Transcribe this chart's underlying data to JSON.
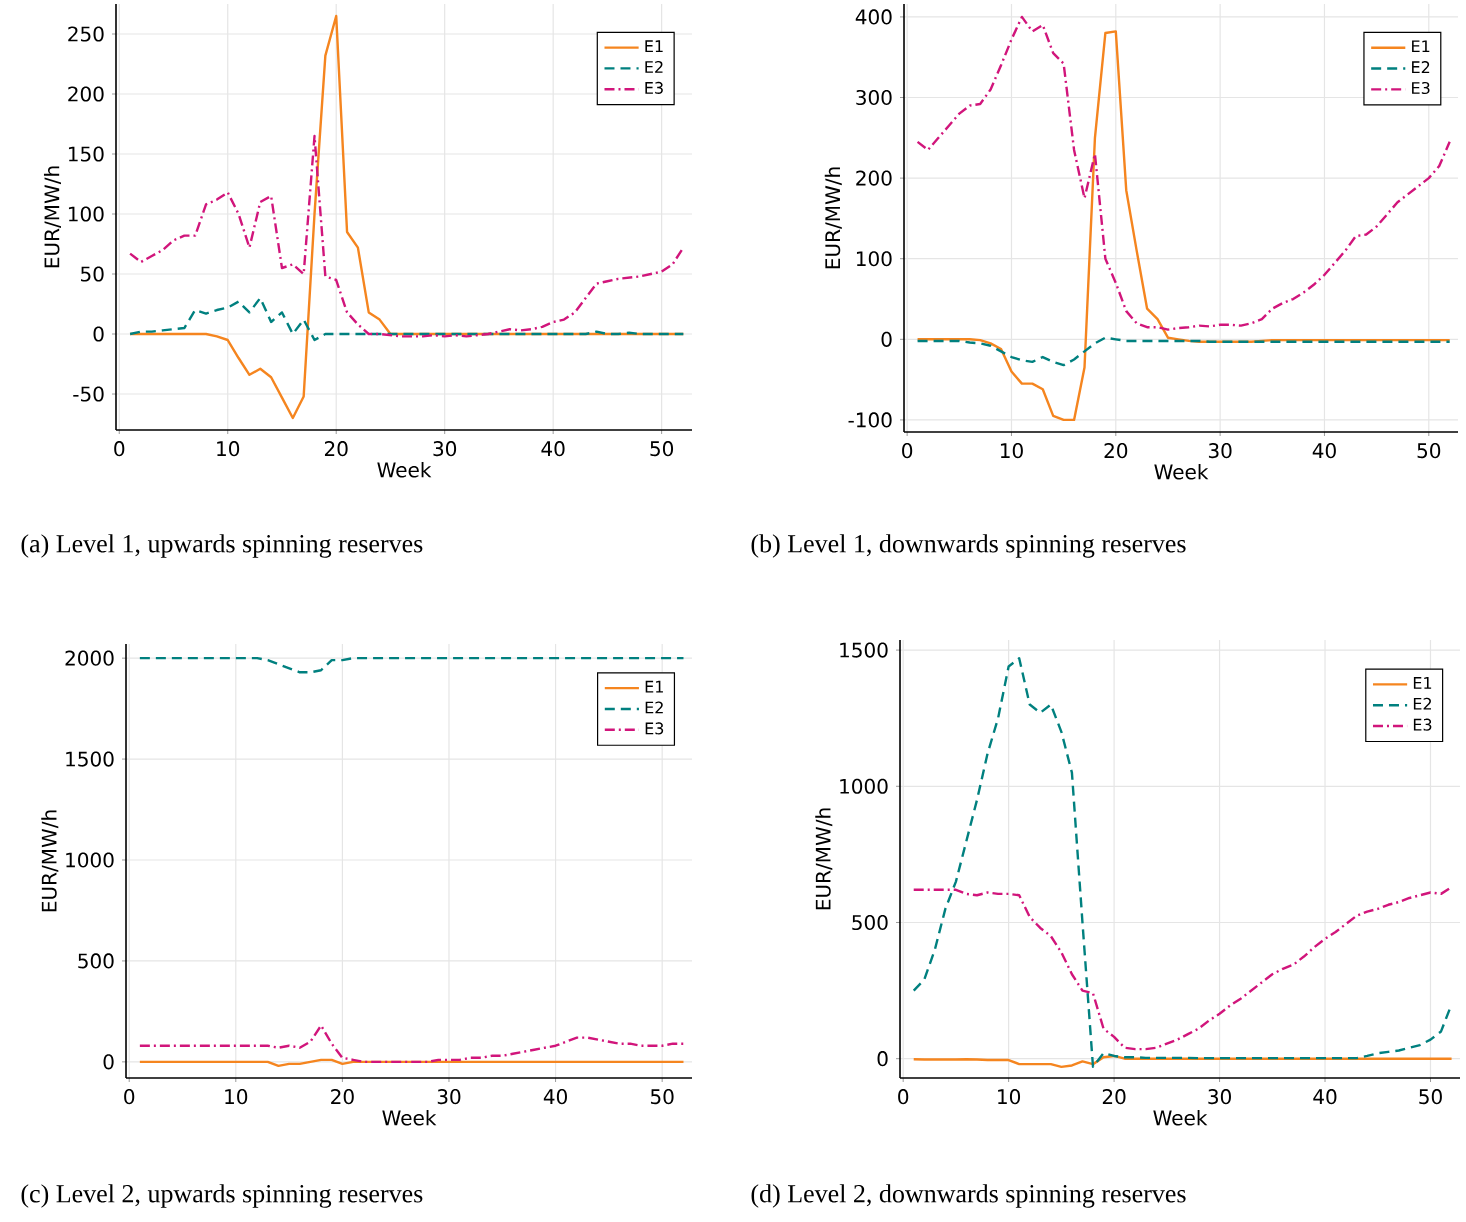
{
  "chart_data": [
    {
      "type": "line",
      "xlabel": "Week",
      "ylabel": "EUR/MW/h",
      "annotations": [
        "(a) Level 1, upwards spinning reserves"
      ],
      "grid": true,
      "legend": "top right",
      "xlim": [
        -0.3,
        52.8
      ],
      "xticks": [
        0,
        10,
        20,
        30,
        40,
        50
      ],
      "ylim": [
        -80,
        275
      ],
      "yticks": [
        -50,
        0,
        50,
        100,
        150,
        200,
        250
      ],
      "x": [
        1,
        2,
        3,
        4,
        5,
        6,
        7,
        8,
        9,
        10,
        11,
        12,
        13,
        14,
        15,
        16,
        17,
        18,
        19,
        20,
        21,
        22,
        23,
        24,
        25,
        26,
        27,
        28,
        29,
        30,
        31,
        32,
        33,
        34,
        35,
        36,
        37,
        38,
        39,
        40,
        41,
        42,
        43,
        44,
        45,
        46,
        47,
        48,
        49,
        50,
        51,
        52
      ],
      "series": [
        {
          "name": "E1",
          "color": "#f5851f",
          "line_style": "solid",
          "values": [
            0,
            0,
            0,
            0,
            0,
            0,
            0,
            0,
            -2,
            -5,
            -20,
            -34,
            -29,
            -36,
            -53,
            -70,
            -52,
            100,
            232,
            265,
            85,
            72,
            18,
            12,
            0,
            0,
            0,
            0,
            0,
            0,
            0,
            0,
            0,
            0,
            0,
            0,
            0,
            0,
            0,
            0,
            0,
            0,
            0,
            0,
            0,
            0,
            0,
            0,
            0,
            0,
            0,
            0
          ]
        },
        {
          "name": "E2",
          "color": "#00807f",
          "line_style": "dashed",
          "values": [
            0,
            2,
            2,
            3,
            4,
            5,
            20,
            17,
            20,
            22,
            27,
            18,
            30,
            10,
            18,
            0,
            12,
            -5,
            0,
            0,
            0,
            0,
            0,
            0,
            0,
            0,
            0,
            0,
            0,
            0,
            0,
            0,
            0,
            0,
            0,
            0,
            0,
            0,
            0,
            0,
            0,
            0,
            0,
            2,
            0,
            0,
            1,
            0,
            0,
            0,
            0,
            0
          ]
        },
        {
          "name": "E3",
          "color": "#d1157b",
          "line_style": "dashdot",
          "values": [
            67,
            60,
            65,
            70,
            78,
            82,
            82,
            108,
            112,
            118,
            100,
            72,
            110,
            115,
            55,
            58,
            50,
            165,
            48,
            45,
            18,
            8,
            0,
            0,
            -1,
            -2,
            -2,
            -2,
            -1,
            -2,
            -1,
            -2,
            -1,
            0,
            2,
            4,
            3,
            4,
            6,
            10,
            12,
            18,
            30,
            42,
            44,
            46,
            47,
            48,
            50,
            52,
            58,
            72
          ]
        }
      ]
    },
    {
      "type": "line",
      "xlabel": "Week",
      "ylabel": "EUR/MW/h",
      "annotations": [
        "(b) Level 1, downwards spinning reserves"
      ],
      "grid": true,
      "legend": "top right",
      "xlim": [
        -0.3,
        52.8
      ],
      "xticks": [
        0,
        10,
        20,
        30,
        40,
        50
      ],
      "ylim": [
        -115,
        416
      ],
      "yticks": [
        -100,
        0,
        100,
        200,
        300,
        400
      ],
      "x": [
        1,
        2,
        3,
        4,
        5,
        6,
        7,
        8,
        9,
        10,
        11,
        12,
        13,
        14,
        15,
        16,
        17,
        18,
        19,
        20,
        21,
        22,
        23,
        24,
        25,
        26,
        27,
        28,
        29,
        30,
        31,
        32,
        33,
        34,
        35,
        36,
        37,
        38,
        39,
        40,
        41,
        42,
        43,
        44,
        45,
        46,
        47,
        48,
        49,
        50,
        51,
        52
      ],
      "series": [
        {
          "name": "E1",
          "color": "#f5851f",
          "line_style": "solid",
          "values": [
            0,
            0,
            0,
            0,
            0,
            0,
            -1,
            -5,
            -12,
            -40,
            -55,
            -55,
            -62,
            -95,
            -100,
            -100,
            -35,
            250,
            380,
            382,
            185,
            110,
            38,
            25,
            2,
            0,
            -2,
            -3,
            -3,
            -3,
            -3,
            -3,
            -3,
            -2,
            -1,
            -1,
            -1,
            -1,
            -1,
            -1,
            -1,
            -1,
            -1,
            -1,
            -1,
            -1,
            -1,
            -1,
            -1,
            -1,
            -1,
            -1
          ]
        },
        {
          "name": "E2",
          "color": "#00807f",
          "line_style": "dashed",
          "values": [
            -2,
            -2,
            -2,
            -2,
            -2,
            -4,
            -5,
            -8,
            -15,
            -22,
            -26,
            -28,
            -22,
            -28,
            -32,
            -25,
            -15,
            -5,
            2,
            0,
            -2,
            -2,
            -2,
            -2,
            -2,
            -2,
            -2,
            -2,
            -3,
            -3,
            -3,
            -3,
            -3,
            -3,
            -3,
            -3,
            -3,
            -3,
            -3,
            -3,
            -3,
            -3,
            -3,
            -3,
            -3,
            -3,
            -3,
            -3,
            -3,
            -3,
            -3,
            -3
          ]
        },
        {
          "name": "E3",
          "color": "#d1157b",
          "line_style": "dashdot",
          "values": [
            245,
            235,
            250,
            265,
            280,
            290,
            292,
            310,
            340,
            372,
            400,
            382,
            390,
            355,
            342,
            235,
            175,
            230,
            100,
            70,
            35,
            20,
            15,
            15,
            12,
            14,
            15,
            17,
            16,
            18,
            18,
            17,
            20,
            25,
            38,
            45,
            50,
            58,
            68,
            80,
            95,
            110,
            128,
            130,
            140,
            155,
            170,
            180,
            190,
            200,
            215,
            245
          ]
        }
      ]
    },
    {
      "type": "line",
      "xlabel": "Week",
      "ylabel": "EUR/MW/h",
      "annotations": [
        "(c) Level 2, upwards spinning reserves"
      ],
      "grid": true,
      "legend": "top right",
      "xlim": [
        -0.3,
        52.8
      ],
      "xticks": [
        0,
        10,
        20,
        30,
        40,
        50
      ],
      "ylim": [
        -80,
        2070
      ],
      "yticks": [
        0,
        500,
        1000,
        1500,
        2000
      ],
      "x": [
        1,
        2,
        3,
        4,
        5,
        6,
        7,
        8,
        9,
        10,
        11,
        12,
        13,
        14,
        15,
        16,
        17,
        18,
        19,
        20,
        21,
        22,
        23,
        24,
        25,
        26,
        27,
        28,
        29,
        30,
        31,
        32,
        33,
        34,
        35,
        36,
        37,
        38,
        39,
        40,
        41,
        42,
        43,
        44,
        45,
        46,
        47,
        48,
        49,
        50,
        51,
        52
      ],
      "series": [
        {
          "name": "E1",
          "color": "#f5851f",
          "line_style": "solid",
          "values": [
            0,
            0,
            0,
            0,
            0,
            0,
            0,
            0,
            0,
            0,
            0,
            0,
            0,
            -20,
            -10,
            -10,
            0,
            10,
            10,
            -10,
            0,
            0,
            0,
            0,
            0,
            0,
            0,
            0,
            0,
            0,
            0,
            0,
            0,
            0,
            0,
            0,
            0,
            0,
            0,
            0,
            0,
            0,
            0,
            0,
            0,
            0,
            0,
            0,
            0,
            0,
            0,
            0
          ]
        },
        {
          "name": "E2",
          "color": "#00807f",
          "line_style": "dashed",
          "values": [
            2000,
            2000,
            2000,
            2000,
            2000,
            2000,
            2000,
            2000,
            2000,
            2000,
            2000,
            2000,
            1990,
            1970,
            1950,
            1930,
            1930,
            1940,
            1990,
            1990,
            2000,
            2000,
            2000,
            2000,
            2000,
            2000,
            2000,
            2000,
            2000,
            2000,
            2000,
            2000,
            2000,
            2000,
            2000,
            2000,
            2000,
            2000,
            2000,
            2000,
            2000,
            2000,
            2000,
            2000,
            2000,
            2000,
            2000,
            2000,
            2000,
            2000,
            2000,
            2000
          ]
        },
        {
          "name": "E3",
          "color": "#d1157b",
          "line_style": "dashdot",
          "values": [
            80,
            80,
            80,
            80,
            80,
            80,
            80,
            80,
            80,
            80,
            80,
            80,
            80,
            70,
            80,
            70,
            100,
            180,
            90,
            20,
            10,
            0,
            0,
            0,
            0,
            0,
            0,
            0,
            10,
            10,
            10,
            20,
            20,
            30,
            30,
            40,
            50,
            60,
            70,
            80,
            100,
            120,
            120,
            110,
            100,
            90,
            90,
            80,
            80,
            80,
            90,
            90
          ]
        }
      ]
    },
    {
      "type": "line",
      "xlabel": "Week",
      "ylabel": "EUR/MW/h",
      "annotations": [
        "(d) Level 2, downwards spinning reserves"
      ],
      "grid": true,
      "legend": "top right",
      "xlim": [
        -0.3,
        52.8
      ],
      "xticks": [
        0,
        10,
        20,
        30,
        40,
        50
      ],
      "ylim": [
        -71,
        1537
      ],
      "yticks": [
        0,
        500,
        1000,
        1500
      ],
      "x": [
        1,
        2,
        3,
        4,
        5,
        6,
        7,
        8,
        9,
        10,
        11,
        12,
        13,
        14,
        15,
        16,
        17,
        18,
        19,
        20,
        21,
        22,
        23,
        24,
        25,
        26,
        27,
        28,
        29,
        30,
        31,
        32,
        33,
        34,
        35,
        36,
        37,
        38,
        39,
        40,
        41,
        42,
        43,
        44,
        45,
        46,
        47,
        48,
        49,
        50,
        51,
        52
      ],
      "series": [
        {
          "name": "E1",
          "color": "#f5851f",
          "line_style": "solid",
          "values": [
            -2,
            -3,
            -3,
            -3,
            -3,
            -2,
            -3,
            -5,
            -5,
            -5,
            -20,
            -20,
            -20,
            -20,
            -30,
            -25,
            -10,
            -20,
            5,
            10,
            0,
            0,
            0,
            0,
            0,
            0,
            0,
            0,
            0,
            0,
            0,
            0,
            0,
            0,
            0,
            0,
            0,
            0,
            0,
            0,
            0,
            0,
            0,
            0,
            0,
            0,
            0,
            0,
            0,
            0,
            0,
            0
          ]
        },
        {
          "name": "E2",
          "color": "#00807f",
          "line_style": "dashed",
          "values": [
            250,
            290,
            400,
            550,
            650,
            800,
            950,
            1120,
            1250,
            1440,
            1470,
            1300,
            1270,
            1300,
            1200,
            1050,
            500,
            -30,
            20,
            10,
            5,
            5,
            3,
            3,
            3,
            3,
            3,
            2,
            2,
            2,
            2,
            2,
            2,
            2,
            2,
            2,
            2,
            2,
            2,
            2,
            2,
            2,
            2,
            10,
            20,
            25,
            30,
            40,
            50,
            70,
            100,
            200
          ]
        },
        {
          "name": "E3",
          "color": "#d1157b",
          "line_style": "dashdot",
          "values": [
            620,
            620,
            620,
            620,
            620,
            605,
            600,
            610,
            605,
            605,
            600,
            520,
            480,
            450,
            390,
            310,
            250,
            240,
            110,
            80,
            40,
            35,
            35,
            40,
            55,
            70,
            90,
            110,
            140,
            165,
            195,
            220,
            250,
            280,
            310,
            330,
            345,
            375,
            410,
            440,
            465,
            495,
            525,
            540,
            550,
            565,
            575,
            590,
            600,
            610,
            605,
            630
          ]
        }
      ]
    }
  ]
}
